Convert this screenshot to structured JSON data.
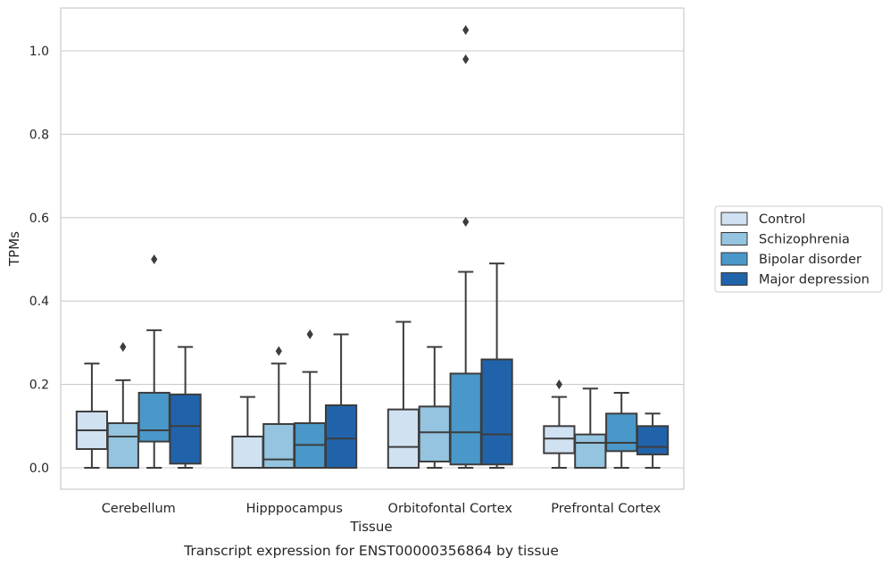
{
  "chart_data": {
    "type": "boxplot",
    "title": "",
    "caption": "Transcript expression for ENST00000356864 by tissue",
    "xlabel": "Tissue",
    "ylabel": "TPMs",
    "ylim": [
      -0.05,
      1.1
    ],
    "yticks": [
      "0.0",
      "0.2",
      "0.4",
      "0.6",
      "0.8",
      "1.0"
    ],
    "grid": "horizontal",
    "legend_position": "right",
    "categories": [
      "Cerebellum",
      "Hipppocampus",
      "Orbitofontal Cortex",
      "Prefrontal Cortex"
    ],
    "series": [
      {
        "name": "Control",
        "color": "#d0e1f2",
        "boxes": [
          {
            "whislo": 0.0,
            "q1": 0.045,
            "med": 0.09,
            "q3": 0.135,
            "whishi": 0.25,
            "fliers": []
          },
          {
            "whislo": 0.0,
            "q1": 0.0,
            "med": 0.0,
            "q3": 0.075,
            "whishi": 0.17,
            "fliers": []
          },
          {
            "whislo": 0.0,
            "q1": 0.0,
            "med": 0.05,
            "q3": 0.14,
            "whishi": 0.35,
            "fliers": []
          },
          {
            "whislo": 0.0,
            "q1": 0.035,
            "med": 0.07,
            "q3": 0.1,
            "whishi": 0.17,
            "fliers": [
              0.2
            ]
          }
        ]
      },
      {
        "name": "Schizophrenia",
        "color": "#94c4df",
        "boxes": [
          {
            "whislo": 0.0,
            "q1": 0.0,
            "med": 0.075,
            "q3": 0.107,
            "whishi": 0.21,
            "fliers": [
              0.29
            ]
          },
          {
            "whislo": 0.0,
            "q1": 0.0,
            "med": 0.02,
            "q3": 0.105,
            "whishi": 0.25,
            "fliers": [
              0.28
            ]
          },
          {
            "whislo": 0.0,
            "q1": 0.015,
            "med": 0.085,
            "q3": 0.147,
            "whishi": 0.29,
            "fliers": []
          },
          {
            "whislo": 0.0,
            "q1": 0.0,
            "med": 0.06,
            "q3": 0.08,
            "whishi": 0.19,
            "fliers": []
          }
        ]
      },
      {
        "name": "Bipolar disorder",
        "color": "#4a98c9",
        "boxes": [
          {
            "whislo": 0.0,
            "q1": 0.063,
            "med": 0.09,
            "q3": 0.18,
            "whishi": 0.33,
            "fliers": [
              0.5
            ]
          },
          {
            "whislo": 0.0,
            "q1": 0.0,
            "med": 0.055,
            "q3": 0.107,
            "whishi": 0.23,
            "fliers": [
              0.32
            ]
          },
          {
            "whislo": 0.0,
            "q1": 0.008,
            "med": 0.085,
            "q3": 0.226,
            "whishi": 0.47,
            "fliers": [
              0.59,
              0.98,
              1.05
            ]
          },
          {
            "whislo": 0.0,
            "q1": 0.04,
            "med": 0.06,
            "q3": 0.13,
            "whishi": 0.18,
            "fliers": []
          }
        ]
      },
      {
        "name": "Major depression",
        "color": "#2163aa",
        "boxes": [
          {
            "whislo": 0.0,
            "q1": 0.01,
            "med": 0.1,
            "q3": 0.176,
            "whishi": 0.29,
            "fliers": []
          },
          {
            "whislo": 0.0,
            "q1": 0.0,
            "med": 0.07,
            "q3": 0.15,
            "whishi": 0.32,
            "fliers": []
          },
          {
            "whislo": 0.0,
            "q1": 0.008,
            "med": 0.08,
            "q3": 0.26,
            "whishi": 0.49,
            "fliers": []
          },
          {
            "whislo": 0.0,
            "q1": 0.032,
            "med": 0.05,
            "q3": 0.1,
            "whishi": 0.13,
            "fliers": []
          }
        ]
      }
    ]
  }
}
